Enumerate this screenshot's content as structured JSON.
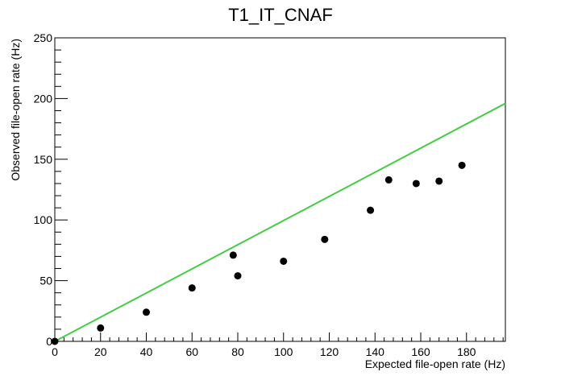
{
  "chart_data": {
    "type": "scatter",
    "title": "T1_IT_CNAF",
    "xlabel": "Expected file-open rate (Hz)",
    "ylabel": "Observed file-open rate (Hz)",
    "xlim": [
      0,
      197
    ],
    "ylim": [
      0,
      250
    ],
    "x_ticks": [
      0,
      20,
      40,
      60,
      80,
      100,
      120,
      140,
      160,
      180
    ],
    "y_ticks": [
      0,
      50,
      100,
      150,
      200,
      250
    ],
    "grid": false,
    "series": [
      {
        "marker": "circle",
        "color": "#000000",
        "points": [
          {
            "x": 0,
            "y": 0
          },
          {
            "x": 20,
            "y": 11
          },
          {
            "x": 40,
            "y": 24
          },
          {
            "x": 60,
            "y": 44
          },
          {
            "x": 78,
            "y": 71
          },
          {
            "x": 80,
            "y": 54
          },
          {
            "x": 100,
            "y": 66
          },
          {
            "x": 118,
            "y": 84
          },
          {
            "x": 138,
            "y": 108
          },
          {
            "x": 146,
            "y": 133
          },
          {
            "x": 158,
            "y": 130
          },
          {
            "x": 168,
            "y": 132
          },
          {
            "x": 178,
            "y": 145
          }
        ]
      }
    ],
    "reference_line": {
      "color": "#44cc44",
      "points": [
        {
          "x": 0,
          "y": 0
        },
        {
          "x": 197,
          "y": 196
        }
      ]
    }
  }
}
